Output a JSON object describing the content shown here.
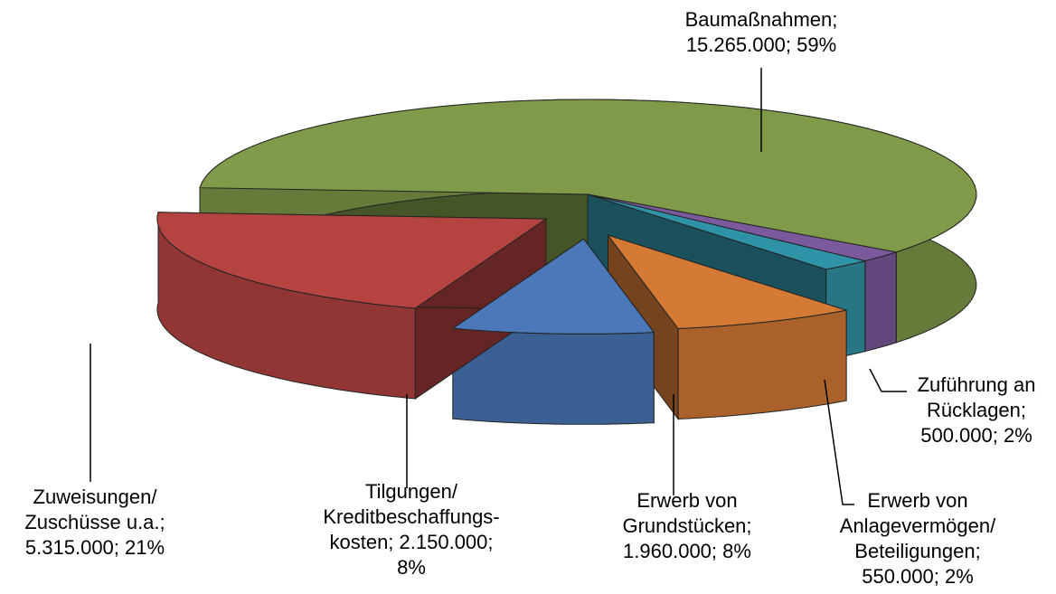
{
  "chart_data": {
    "type": "pie",
    "categories": [
      "Baumaßnahmen",
      "Zuführung an Rücklagen",
      "Erwerb von Anlagevermögen/Beteiligungen",
      "Erwerb von Grundstücken",
      "Tilgungen/Kreditbeschaffungskosten",
      "Zuweisungen/Zuschüsse u.a."
    ],
    "values": [
      15265000,
      500000,
      550000,
      1960000,
      2150000,
      5315000
    ],
    "value_labels": [
      "15.265.000",
      "500.000",
      "550.000",
      "1.960.000",
      "2.150.000",
      "5.315.000"
    ],
    "percents": [
      59,
      2,
      2,
      8,
      8,
      21
    ],
    "percent_labels": [
      "59%",
      "2%",
      "2%",
      "8%",
      "8%",
      "21%"
    ],
    "labels": [
      "Baumaßnahmen;\n15.265.000; 59%",
      "Zuführung an\nRücklagen;\n500.000; 2%",
      "Erwerb von\nAnlagevermögen/\nBeteiligungen;\n550.000; 2%",
      "Erwerb von\nGrundstücken;\n1.960.000; 8%",
      "Tilgungen/\nKreditbeschaffungs-\nkosten; 2.150.000;\n8%",
      "Zuweisungen/\nZuschüsse u.a.;\n5.315.000; 21%"
    ],
    "colors": [
      "#7f9a48",
      "#7a5a9c",
      "#2f93a8",
      "#d57a35",
      "#4a78b8",
      "#b54441"
    ],
    "explode": [
      false,
      false,
      false,
      true,
      true,
      true
    ]
  }
}
